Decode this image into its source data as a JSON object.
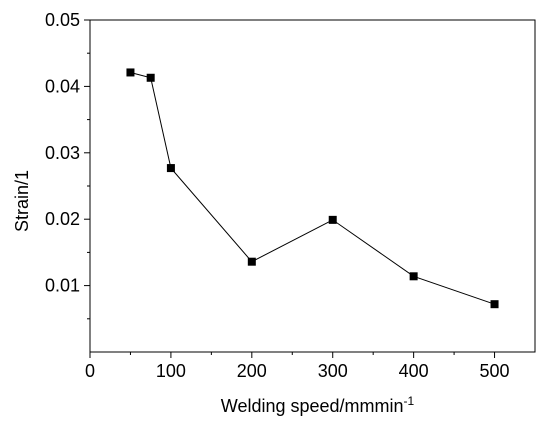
{
  "chart_data": {
    "type": "line",
    "title": "",
    "xlabel": "Welding speed/mmmin",
    "xlabel_sup": "-1",
    "ylabel": "Strain/1",
    "xlim": [
      0,
      550
    ],
    "ylim": [
      0.0,
      0.05
    ],
    "xticks": [
      0,
      100,
      200,
      300,
      400,
      500
    ],
    "xtick_labels": [
      "0",
      "100",
      "200",
      "300",
      "400",
      "500"
    ],
    "yticks": [
      0.01,
      0.02,
      0.03,
      0.04,
      0.05
    ],
    "ytick_labels": [
      "0.01",
      "0.02",
      "0.03",
      "0.04",
      "0.05"
    ],
    "grid": false,
    "marker": "square",
    "series": [
      {
        "x": [
          50,
          75,
          100,
          200,
          300,
          400,
          500
        ],
        "y": [
          0.0421,
          0.0413,
          0.0277,
          0.0136,
          0.0199,
          0.0114,
          0.0072
        ]
      }
    ]
  }
}
